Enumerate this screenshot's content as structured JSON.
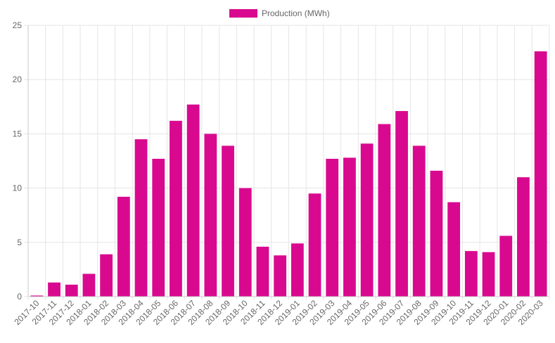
{
  "chart_data": {
    "type": "bar",
    "categories": [
      "2017-10",
      "2017-11",
      "2017-12",
      "2018-01",
      "2018-02",
      "2018-03",
      "2018-04",
      "2018-05",
      "2018-06",
      "2018-07",
      "2018-08",
      "2018-09",
      "2018-10",
      "2018-11",
      "2018-12",
      "2019-01",
      "2019-02",
      "2019-03",
      "2019-04",
      "2019-05",
      "2019-06",
      "2019-07",
      "2019-08",
      "2019-09",
      "2019-10",
      "2019-11",
      "2019-12",
      "2020-01",
      "2020-02",
      "2020-03"
    ],
    "series": [
      {
        "name": "Production (MWh)",
        "color": "#d9098f",
        "values": [
          0.1,
          1.3,
          1.1,
          2.1,
          3.9,
          9.2,
          14.5,
          12.7,
          16.2,
          17.7,
          15.0,
          13.9,
          10.0,
          4.6,
          3.8,
          4.9,
          9.5,
          12.7,
          12.8,
          14.1,
          15.9,
          17.1,
          13.9,
          11.6,
          8.7,
          4.2,
          4.1,
          5.6,
          11.0,
          22.6
        ]
      }
    ],
    "title": "",
    "xlabel": "",
    "ylabel": "",
    "ylim": [
      0,
      25
    ],
    "yticks": [
      "0",
      "5",
      "10",
      "15",
      "20",
      "25"
    ],
    "grid": true,
    "legend": "top-center"
  }
}
